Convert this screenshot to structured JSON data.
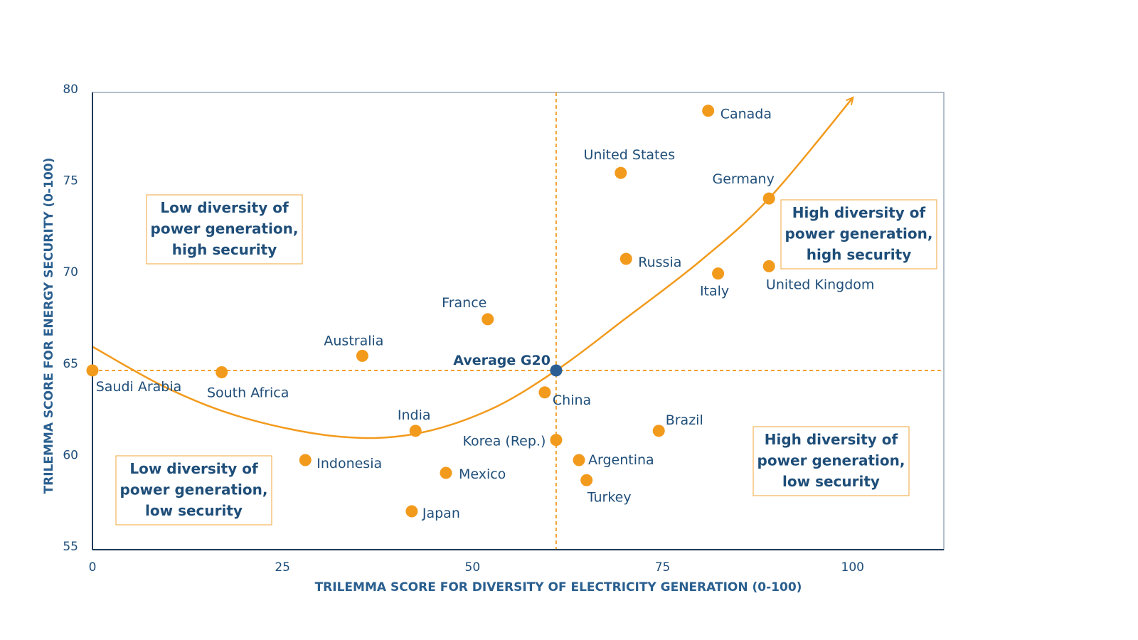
{
  "colors": {
    "point": "#f29a1c",
    "average_point": "#2b5f93",
    "curve": "#f29a1c",
    "reference_lines": "#f29a1c",
    "axis": "#1f3b5a",
    "frame": "#9aa8b8",
    "text": "#1f4e79",
    "quadrant_border": "#f2b35a"
  },
  "chart_data": {
    "type": "scatter",
    "xlabel": "TRILEMMA SCORE FOR DIVERSITY OF ELECTRICITY GENERATION (0-100)",
    "ylabel": "TRILEMMA SCORE FOR ENERGY SECURITY (0-100)",
    "xlim": [
      0,
      112
    ],
    "ylim": [
      55,
      80
    ],
    "xticks": [
      0,
      25,
      50,
      75,
      100
    ],
    "xtick_labels": [
      "0",
      "25",
      "50",
      "75",
      "100"
    ],
    "yticks": [
      55,
      60,
      65,
      70,
      75,
      80
    ],
    "ytick_labels": [
      "55",
      "60",
      "65",
      "70",
      "75",
      "80"
    ],
    "grid": false,
    "points": [
      {
        "label": "Canada",
        "x": 81,
        "y": 79
      },
      {
        "label": "United States",
        "x": 69.5,
        "y": 75.6
      },
      {
        "label": "Germany",
        "x": 89,
        "y": 74.2
      },
      {
        "label": "Russia",
        "x": 70.2,
        "y": 70.9
      },
      {
        "label": "Italy",
        "x": 82.3,
        "y": 70.1
      },
      {
        "label": "United Kingdom",
        "x": 89,
        "y": 70.5
      },
      {
        "label": "France",
        "x": 52,
        "y": 67.6
      },
      {
        "label": "Australia",
        "x": 35.5,
        "y": 65.6
      },
      {
        "label": "Saudi Arabia",
        "x": 0,
        "y": 64.8
      },
      {
        "label": "South Africa",
        "x": 17,
        "y": 64.7
      },
      {
        "label": "China",
        "x": 59.5,
        "y": 63.6
      },
      {
        "label": "India",
        "x": 42.5,
        "y": 61.5
      },
      {
        "label": "Brazil",
        "x": 74.5,
        "y": 61.5
      },
      {
        "label": "Korea (Rep.)",
        "x": 61,
        "y": 61
      },
      {
        "label": "Indonesia",
        "x": 28,
        "y": 59.9
      },
      {
        "label": "Argentina",
        "x": 64,
        "y": 59.9
      },
      {
        "label": "Mexico",
        "x": 46.5,
        "y": 59.2
      },
      {
        "label": "Turkey",
        "x": 65,
        "y": 58.8
      },
      {
        "label": "Japan",
        "x": 42,
        "y": 57.1
      }
    ],
    "average": {
      "label": "Average G20",
      "x": 61,
      "y": 64.8
    },
    "trend_curve": [
      [
        0,
        66.1
      ],
      [
        10,
        63.8
      ],
      [
        20,
        62.2
      ],
      [
        32,
        61.2
      ],
      [
        42,
        61.3
      ],
      [
        52,
        62.6
      ],
      [
        61,
        64.8
      ],
      [
        70,
        67.6
      ],
      [
        80,
        70.8
      ],
      [
        89,
        74.2
      ],
      [
        100,
        79.7
      ]
    ],
    "quadrants": [
      {
        "position": "top-left",
        "lines": [
          "Low diversity of",
          "power generation,",
          "high security"
        ]
      },
      {
        "position": "top-right",
        "lines": [
          "High diversity of",
          "power generation,",
          "high security"
        ]
      },
      {
        "position": "bottom-left",
        "lines": [
          "Low diversity of",
          "power generation,",
          "low security"
        ]
      },
      {
        "position": "bottom-right",
        "lines": [
          "High diversity of",
          "power generation,",
          "low security"
        ]
      }
    ]
  }
}
